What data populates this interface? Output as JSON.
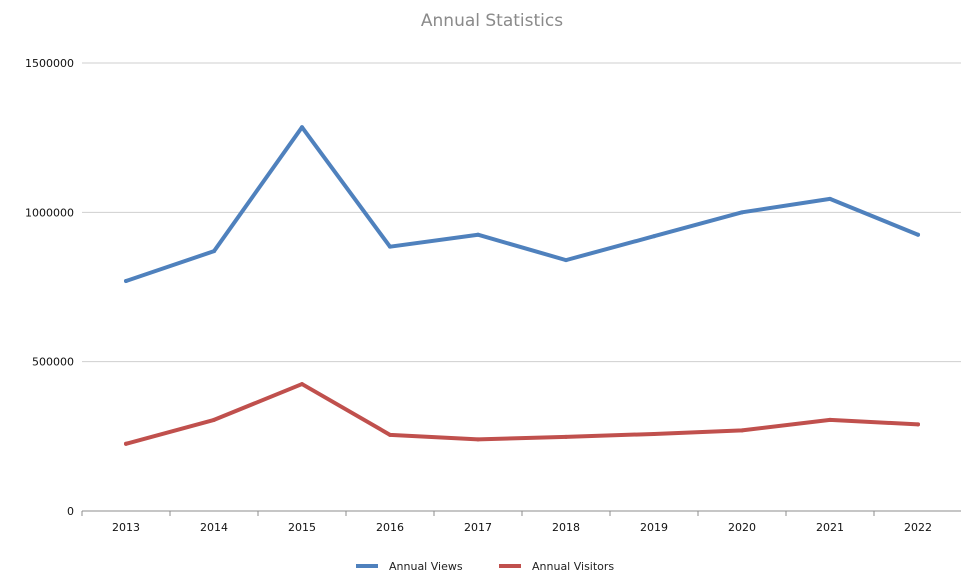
{
  "chart_data": {
    "type": "line",
    "title": "Annual Statistics",
    "xlabel": "",
    "ylabel": "",
    "categories": [
      "2013",
      "2014",
      "2015",
      "2016",
      "2017",
      "2018",
      "2019",
      "2020",
      "2021",
      "2022"
    ],
    "y_ticks": [
      "0",
      "500000",
      "1000000",
      "1500000"
    ],
    "ylim": [
      0,
      1500000
    ],
    "grid": true,
    "legend_position": "bottom",
    "series": [
      {
        "name": "Annual Views",
        "color": "#4f81bd",
        "values": [
          770000,
          870000,
          1285000,
          885000,
          925000,
          840000,
          920000,
          1000000,
          1045000,
          925000
        ]
      },
      {
        "name": "Annual Visitors",
        "color": "#c0504d",
        "values": [
          225000,
          305000,
          425000,
          255000,
          240000,
          248000,
          258000,
          270000,
          305000,
          290000
        ]
      }
    ]
  }
}
